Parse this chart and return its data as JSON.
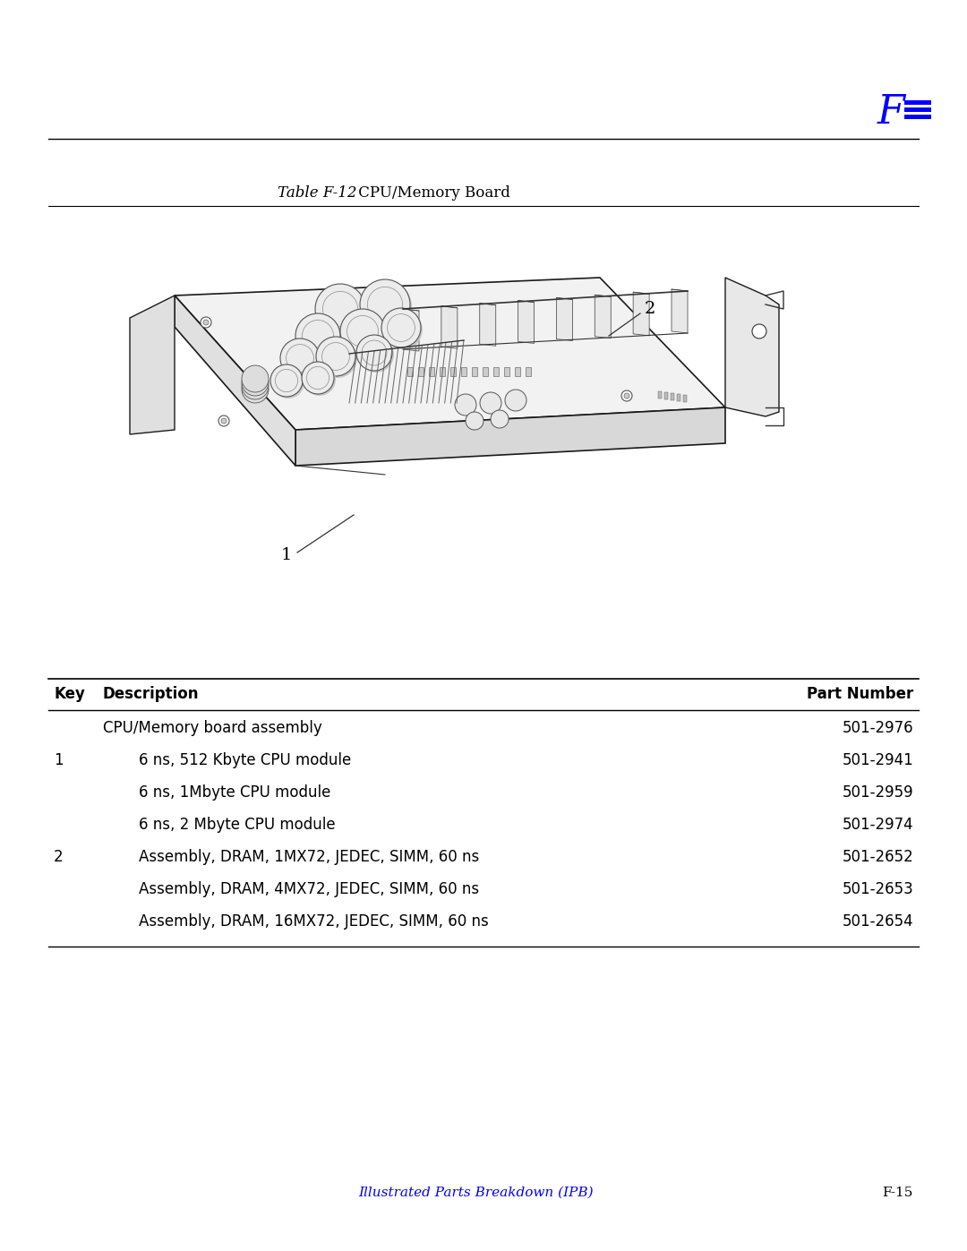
{
  "title_italic": "Table F-12",
  "title_regular": " CPU/Memory Board",
  "header_symbol": "F",
  "bg_color": "#ffffff",
  "table_header": [
    "Key",
    "Description",
    "Part Number"
  ],
  "table_rows": [
    {
      "key": "",
      "indent": false,
      "description": "CPU/Memory board assembly",
      "part_number": "501-2976"
    },
    {
      "key": "1",
      "indent": true,
      "description": "6 ns, 512 Kbyte CPU module",
      "part_number": "501-2941"
    },
    {
      "key": "",
      "indent": true,
      "description": "6 ns, 1Mbyte CPU module",
      "part_number": "501-2959"
    },
    {
      "key": "",
      "indent": true,
      "description": "6 ns, 2 Mbyte CPU module",
      "part_number": "501-2974"
    },
    {
      "key": "2",
      "indent": true,
      "description": "Assembly, DRAM, 1MX72, JEDEC, SIMM, 60 ns",
      "part_number": "501-2652"
    },
    {
      "key": "",
      "indent": true,
      "description": "Assembly, DRAM, 4MX72, JEDEC, SIMM, 60 ns",
      "part_number": "501-2653"
    },
    {
      "key": "",
      "indent": true,
      "description": "Assembly, DRAM, 16MX72, JEDEC, SIMM, 60 ns",
      "part_number": "501-2654"
    }
  ],
  "footer_left": "Illustrated Parts Breakdown (IPB)",
  "footer_right": "F-15",
  "accent_color": "#0000ff",
  "text_color": "#000000",
  "line_color": "#000000",
  "diagram_label_1": "1",
  "diagram_label_2": "2"
}
